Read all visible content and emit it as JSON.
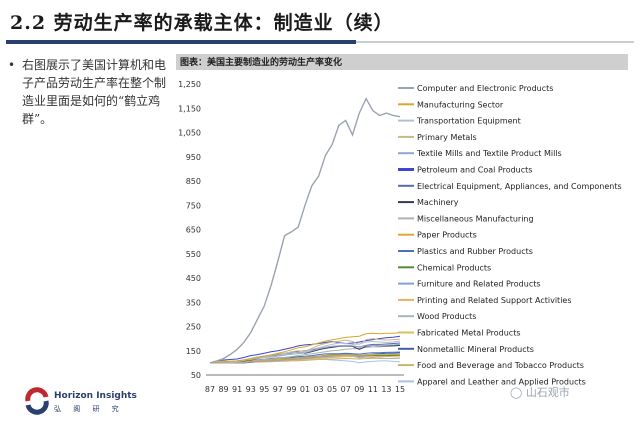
{
  "slide": {
    "title": "2.2 劳动生产率的承载主体：制造业（续）",
    "bullet": "•",
    "bullet_text": "右图展示了美国计算机和电子产品劳动生产率在整个制造业里面是如何的“鹤立鸡群”。",
    "logo_en": "Horizon Insights",
    "logo_cn": "弘 阁 研 究",
    "watermark": "山石观市"
  },
  "chart_data": {
    "type": "line",
    "title": "图表：美国主要制造业的劳动生产率变化",
    "xlabel": "",
    "ylabel": "",
    "x": [
      "87",
      "88",
      "89",
      "90",
      "91",
      "92",
      "93",
      "94",
      "95",
      "96",
      "97",
      "98",
      "99",
      "00",
      "01",
      "02",
      "03",
      "04",
      "05",
      "06",
      "07",
      "08",
      "09",
      "10",
      "11",
      "12",
      "13",
      "14",
      "15"
    ],
    "x_tick_labels": [
      "87",
      "89",
      "91",
      "93",
      "95",
      "97",
      "99",
      "01",
      "03",
      "05",
      "07",
      "09",
      "11",
      "13",
      "15"
    ],
    "y_ticks": [
      50,
      150,
      250,
      350,
      450,
      550,
      650,
      750,
      850,
      950,
      1050,
      1150,
      1250
    ],
    "ylim": [
      50,
      1250
    ],
    "grid": false,
    "legend_position": "right",
    "series": [
      {
        "name": "Computer and Electronic Products",
        "color": "#9aa3b0",
        "values": [
          100,
          108,
          118,
          135,
          155,
          185,
          225,
          280,
          335,
          420,
          520,
          625,
          640,
          660,
          750,
          830,
          870,
          955,
          1000,
          1080,
          1100,
          1040,
          1130,
          1190,
          1140,
          1120,
          1130,
          1120,
          1115
        ]
      },
      {
        "name": "Manufacturing Sector",
        "color": "#d8a72c",
        "values": [
          100,
          102,
          104,
          106,
          108,
          112,
          116,
          121,
          128,
          133,
          140,
          146,
          154,
          162,
          166,
          174,
          182,
          190,
          195,
          200,
          205,
          208,
          210,
          220,
          222,
          220,
          222,
          222,
          225
        ]
      },
      {
        "name": "Transportation Equipment",
        "color": "#b7bec9",
        "values": [
          100,
          102,
          104,
          103,
          105,
          110,
          114,
          120,
          122,
          126,
          130,
          138,
          144,
          142,
          146,
          156,
          162,
          170,
          176,
          182,
          180,
          176,
          178,
          186,
          188,
          186,
          184,
          186,
          190
        ]
      },
      {
        "name": "Primary Metals",
        "color": "#c7b88a",
        "values": [
          100,
          104,
          108,
          106,
          104,
          112,
          118,
          124,
          126,
          130,
          136,
          140,
          146,
          150,
          148,
          160,
          172,
          180,
          186,
          190,
          194,
          188,
          176,
          196,
          200,
          196,
          194,
          196,
          198
        ]
      },
      {
        "name": "Textile Mills and Textile Product Mills",
        "color": "#8fa7cf",
        "values": [
          100,
          102,
          104,
          104,
          106,
          110,
          114,
          118,
          122,
          124,
          128,
          132,
          136,
          138,
          142,
          150,
          158,
          164,
          168,
          170,
          172,
          170,
          166,
          170,
          172,
          170,
          172,
          174,
          176
        ]
      },
      {
        "name": "Petroleum and Coal Products",
        "color": "#3a46d8",
        "values": [
          100,
          106,
          112,
          114,
          116,
          122,
          130,
          134,
          140,
          146,
          150,
          156,
          162,
          170,
          174,
          176,
          180,
          184,
          188,
          184,
          180,
          182,
          186,
          192,
          196,
          200,
          204,
          206,
          210
        ]
      },
      {
        "name": "Electrical Equipment, Appliances, and Components",
        "color": "#5a6aa8",
        "values": [
          100,
          102,
          104,
          106,
          108,
          112,
          118,
          124,
          128,
          132,
          136,
          140,
          144,
          148,
          150,
          154,
          158,
          164,
          168,
          170,
          172,
          170,
          166,
          172,
          176,
          176,
          178,
          180,
          182
        ]
      },
      {
        "name": "Machinery",
        "color": "#333b52",
        "values": [
          100,
          102,
          104,
          104,
          104,
          108,
          112,
          118,
          124,
          128,
          134,
          138,
          142,
          144,
          140,
          146,
          154,
          160,
          164,
          168,
          170,
          168,
          156,
          168,
          172,
          170,
          170,
          170,
          172
        ]
      },
      {
        "name": "Miscellaneous Manufacturing",
        "color": "#b0b0b0",
        "values": [
          100,
          101,
          102,
          104,
          106,
          108,
          110,
          112,
          114,
          116,
          118,
          122,
          126,
          130,
          134,
          138,
          142,
          146,
          150,
          152,
          156,
          158,
          160,
          164,
          166,
          166,
          168,
          170,
          172
        ]
      },
      {
        "name": "Paper Products",
        "color": "#e0a63c",
        "values": [
          100,
          101,
          102,
          102,
          103,
          105,
          107,
          109,
          110,
          112,
          114,
          116,
          118,
          120,
          121,
          124,
          127,
          130,
          132,
          133,
          134,
          133,
          131,
          134,
          135,
          134,
          134,
          135,
          136
        ]
      },
      {
        "name": "Plastics and Rubber Products",
        "color": "#4a6fc8",
        "values": [
          100,
          101,
          103,
          104,
          106,
          108,
          110,
          113,
          115,
          118,
          120,
          122,
          124,
          126,
          127,
          130,
          134,
          137,
          138,
          138,
          140,
          138,
          136,
          140,
          142,
          142,
          143,
          144,
          145
        ]
      },
      {
        "name": "Chemical Products",
        "color": "#4e8f3a",
        "values": [
          100,
          101,
          102,
          103,
          104,
          106,
          108,
          110,
          112,
          114,
          116,
          118,
          120,
          121,
          122,
          125,
          128,
          131,
          134,
          136,
          138,
          136,
          130,
          134,
          132,
          130,
          130,
          131,
          132
        ]
      },
      {
        "name": "Furniture and Related Products",
        "color": "#7ea3d8",
        "values": [
          100,
          101,
          102,
          102,
          103,
          104,
          105,
          106,
          107,
          108,
          110,
          112,
          114,
          116,
          118,
          120,
          124,
          126,
          128,
          130,
          132,
          132,
          126,
          130,
          132,
          132,
          133,
          134,
          135
        ]
      },
      {
        "name": "Printing and Related Support Activities",
        "color": "#e8b06a",
        "values": [
          100,
          100,
          101,
          101,
          102,
          103,
          104,
          104,
          105,
          106,
          107,
          108,
          110,
          112,
          114,
          116,
          118,
          120,
          122,
          124,
          126,
          126,
          124,
          126,
          127,
          126,
          126,
          127,
          128
        ]
      },
      {
        "name": "Wood Products",
        "color": "#a9b3bf",
        "values": [
          100,
          101,
          102,
          101,
          100,
          102,
          104,
          106,
          108,
          109,
          110,
          112,
          114,
          116,
          118,
          122,
          126,
          130,
          132,
          134,
          134,
          128,
          120,
          124,
          122,
          120,
          118,
          118,
          119
        ]
      },
      {
        "name": "Fabricated Metal Products",
        "color": "#d9c05a",
        "values": [
          100,
          100,
          101,
          101,
          100,
          102,
          104,
          106,
          108,
          110,
          112,
          114,
          116,
          118,
          118,
          120,
          122,
          124,
          126,
          128,
          130,
          130,
          124,
          128,
          130,
          130,
          130,
          130,
          131
        ]
      },
      {
        "name": "Nonmetallic Mineral Products",
        "color": "#3d5fa8",
        "values": [
          100,
          100,
          101,
          100,
          99,
          100,
          102,
          104,
          106,
          108,
          110,
          112,
          114,
          116,
          118,
          120,
          124,
          128,
          130,
          132,
          134,
          132,
          126,
          132,
          136,
          138,
          140,
          140,
          142
        ]
      },
      {
        "name": "Food and Beverage and Tobacco Products",
        "color": "#c9b46c",
        "values": [
          100,
          100,
          101,
          101,
          102,
          102,
          103,
          104,
          104,
          105,
          106,
          107,
          108,
          109,
          110,
          112,
          114,
          115,
          116,
          117,
          118,
          117,
          116,
          118,
          119,
          118,
          118,
          119,
          120
        ]
      },
      {
        "name": "Apparel and Leather and Applied Products",
        "color": "#a7c3e6",
        "values": [
          100,
          100,
          101,
          101,
          102,
          103,
          104,
          106,
          108,
          110,
          112,
          114,
          116,
          118,
          120,
          118,
          116,
          114,
          112,
          110,
          108,
          106,
          100,
          104,
          106,
          108,
          108,
          106,
          104
        ]
      }
    ]
  }
}
